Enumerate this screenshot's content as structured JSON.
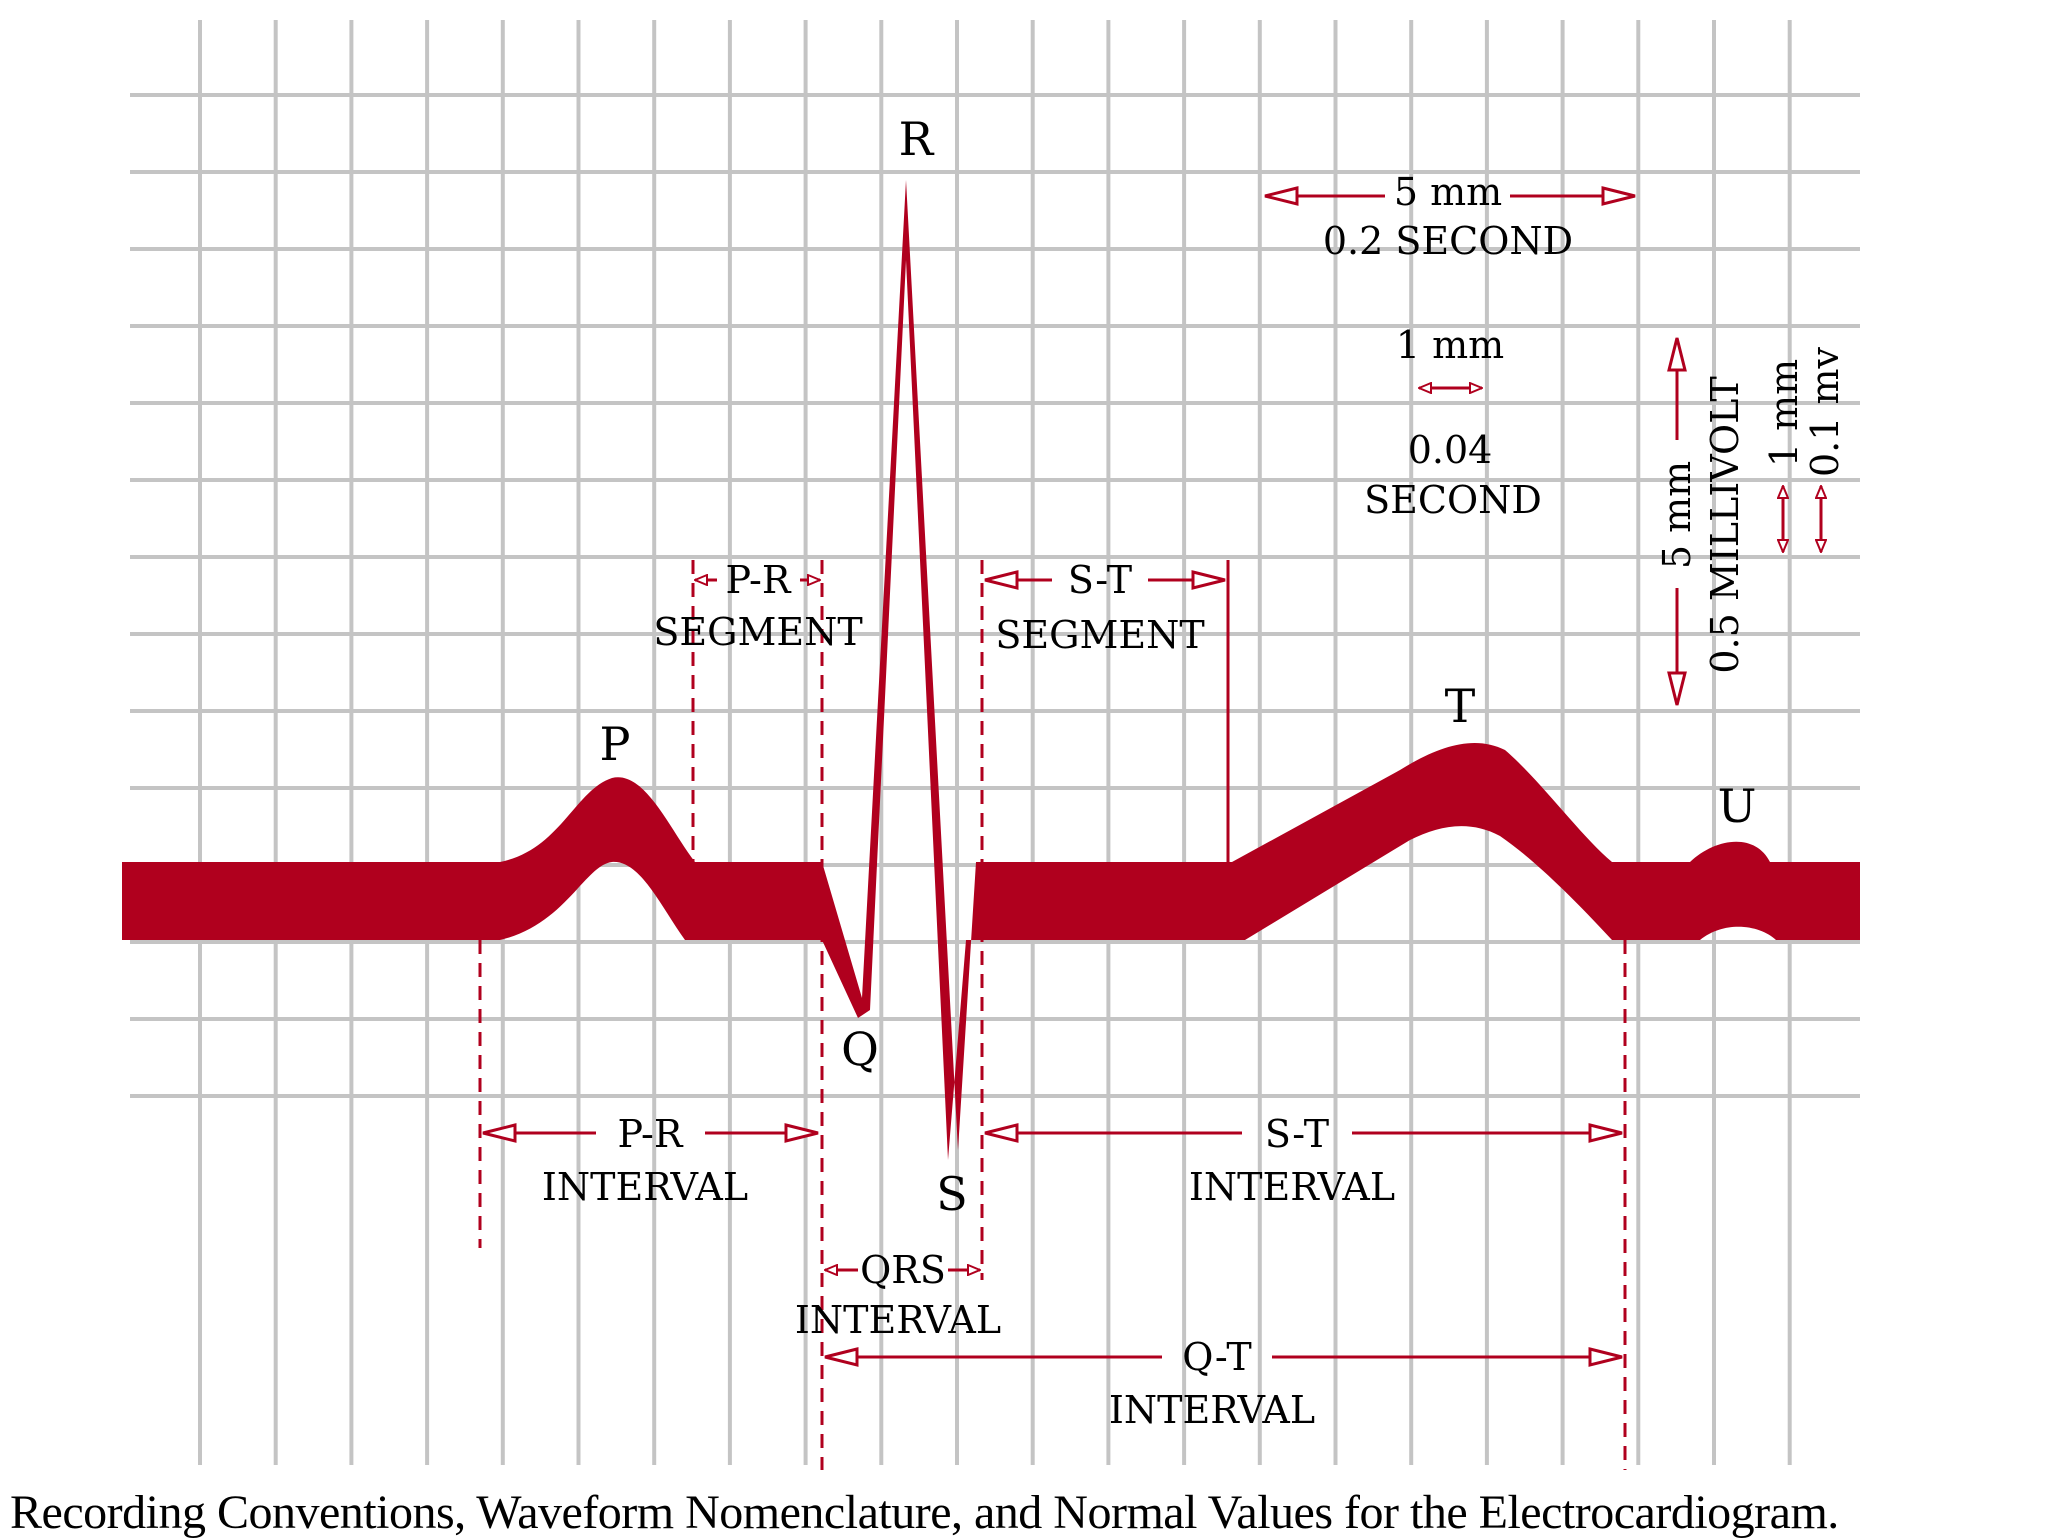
{
  "colors": {
    "trace": "#b0001e",
    "grid": "#c4c4c4",
    "text": "#000000"
  },
  "waves": {
    "p": "P",
    "q": "Q",
    "r": "R",
    "s": "S",
    "t": "T",
    "u": "U"
  },
  "pr_segment": {
    "label": "P-R",
    "sub": "SEGMENT"
  },
  "st_segment": {
    "label": "S-T",
    "sub": "SEGMENT"
  },
  "pr_interval": {
    "label": "P-R",
    "sub": "INTERVAL"
  },
  "qrs_interval": {
    "label": "QRS",
    "sub": "INTERVAL"
  },
  "st_interval": {
    "label": "S-T",
    "sub": "INTERVAL"
  },
  "qt_interval": {
    "label": "Q-T",
    "sub": "INTERVAL"
  },
  "scale": {
    "big_time_mm": "5 mm",
    "big_time_sec": "0.2 SECOND",
    "small_time_mm": "1 mm",
    "small_time_sec_value": "0.04",
    "small_time_sec_unit": "SECOND",
    "big_volt_mm": "5 mm",
    "big_volt_mv": "0.5 MILLIVOLT",
    "small_volt_mm": "1 mm",
    "small_volt_mv": "0.1 mv"
  },
  "caption": "Recording Conventions, Waveform Nomenclature, and Normal Values for the Electrocardiogram."
}
